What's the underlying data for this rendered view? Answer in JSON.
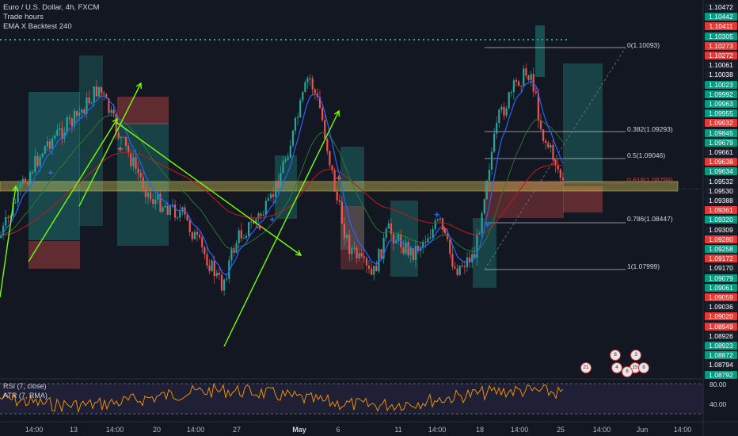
{
  "legend": {
    "symbol": "Euro / U.S. Dollar, 4h, FXCM",
    "line2": "Trade hours",
    "line3": "EMA X Backtest 240"
  },
  "price_scale": [
    {
      "label": "1.10472",
      "color": "#1a1e2b"
    },
    {
      "label": "1.10442",
      "color": "#089981"
    },
    {
      "label": "1.10411",
      "color": "#e53935"
    },
    {
      "label": "1.10305",
      "color": "#089981"
    },
    {
      "label": "1.10273",
      "color": "#e53935"
    },
    {
      "label": "1.10272",
      "color": "#e53935"
    },
    {
      "label": "1.10061",
      "color": "#1a1e2b"
    },
    {
      "label": "1.10038",
      "color": "#1a1e2b"
    },
    {
      "label": "1.10023",
      "color": "#089981"
    },
    {
      "label": "1.09992",
      "color": "#089981"
    },
    {
      "label": "1.09963",
      "color": "#089981"
    },
    {
      "label": "1.09955",
      "color": "#089981"
    },
    {
      "label": "1.09932",
      "color": "#e53935"
    },
    {
      "label": "1.09845",
      "color": "#089981"
    },
    {
      "label": "1.09679",
      "color": "#089981"
    },
    {
      "label": "1.09661",
      "color": "#1a1e2b"
    },
    {
      "label": "1.09638",
      "color": "#e53935"
    },
    {
      "label": "1.09634",
      "color": "#089981"
    },
    {
      "label": "1.09532",
      "color": "#1a1e2b"
    },
    {
      "label": "1.09530",
      "color": "#1a1e2b"
    },
    {
      "label": "1.09388",
      "color": "#1a1e2b"
    },
    {
      "label": "1.09361",
      "color": "#e53935"
    },
    {
      "label": "1.09320",
      "color": "#089981"
    },
    {
      "label": "1.09309",
      "color": "#1a1e2b"
    },
    {
      "label": "1.09280",
      "color": "#e53935"
    },
    {
      "label": "1.09258",
      "color": "#089981"
    },
    {
      "label": "1.09172",
      "color": "#e53935"
    },
    {
      "label": "1.09170",
      "color": "#1a1e2b"
    },
    {
      "label": "1.09079",
      "color": "#089981"
    },
    {
      "label": "1.09061",
      "color": "#089981"
    },
    {
      "label": "1.09059",
      "color": "#e53935"
    },
    {
      "label": "1.09036",
      "color": "#1a1e2b"
    },
    {
      "label": "1.09020",
      "color": "#e53935"
    },
    {
      "label": "1.08949",
      "color": "#e53935"
    },
    {
      "label": "1.08926",
      "color": "#1a1e2b"
    },
    {
      "label": "1.08923",
      "color": "#089981"
    },
    {
      "label": "1.08872",
      "color": "#089981"
    },
    {
      "label": "1.08794",
      "color": "#1a1e2b"
    },
    {
      "label": "1.08792",
      "color": "#089981"
    }
  ],
  "fib_levels": [
    {
      "label": "0(1.10093)"
    },
    {
      "label": "0.382(1.09293)"
    },
    {
      "label": "0.5(1.09046)"
    },
    {
      "label": "0.618(1.08799)"
    },
    {
      "label": "0.786(1.08447)"
    },
    {
      "label": "1(1.07999)"
    }
  ],
  "rsi": {
    "line1": "RSI (7, close)",
    "line2": "ATR (7, RMA)",
    "level_high": "80.00",
    "level_low": "40.00"
  },
  "time_axis": [
    {
      "label": "14:00",
      "bold": false
    },
    {
      "label": "13",
      "bold": false
    },
    {
      "label": "14:00",
      "bold": false
    },
    {
      "label": "20",
      "bold": false
    },
    {
      "label": "14:00",
      "bold": false
    },
    {
      "label": "27",
      "bold": false
    },
    {
      "label": "May",
      "bold": true
    },
    {
      "label": "6",
      "bold": false
    },
    {
      "label": "11",
      "bold": false
    },
    {
      "label": "14:00",
      "bold": false
    },
    {
      "label": "18",
      "bold": false
    },
    {
      "label": "14:00",
      "bold": false
    },
    {
      "label": "25",
      "bold": false
    },
    {
      "label": "14:00",
      "bold": false
    },
    {
      "label": "Jun",
      "bold": false
    },
    {
      "label": "14:00",
      "bold": false
    }
  ],
  "events": [
    {
      "label": "21"
    },
    {
      "label": "8"
    },
    {
      "label": "3"
    },
    {
      "label": "4"
    },
    {
      "label": "15"
    },
    {
      "label": "8"
    },
    {
      "label": "8"
    }
  ],
  "colors": {
    "background": "#131722",
    "up": "#26a69a",
    "down": "#ef5350",
    "ema_fast": "#2962ff",
    "ema_slow": "#b71c1c",
    "trend_arrow": "#76ff03",
    "zone_highlight": "#f5e663"
  }
}
